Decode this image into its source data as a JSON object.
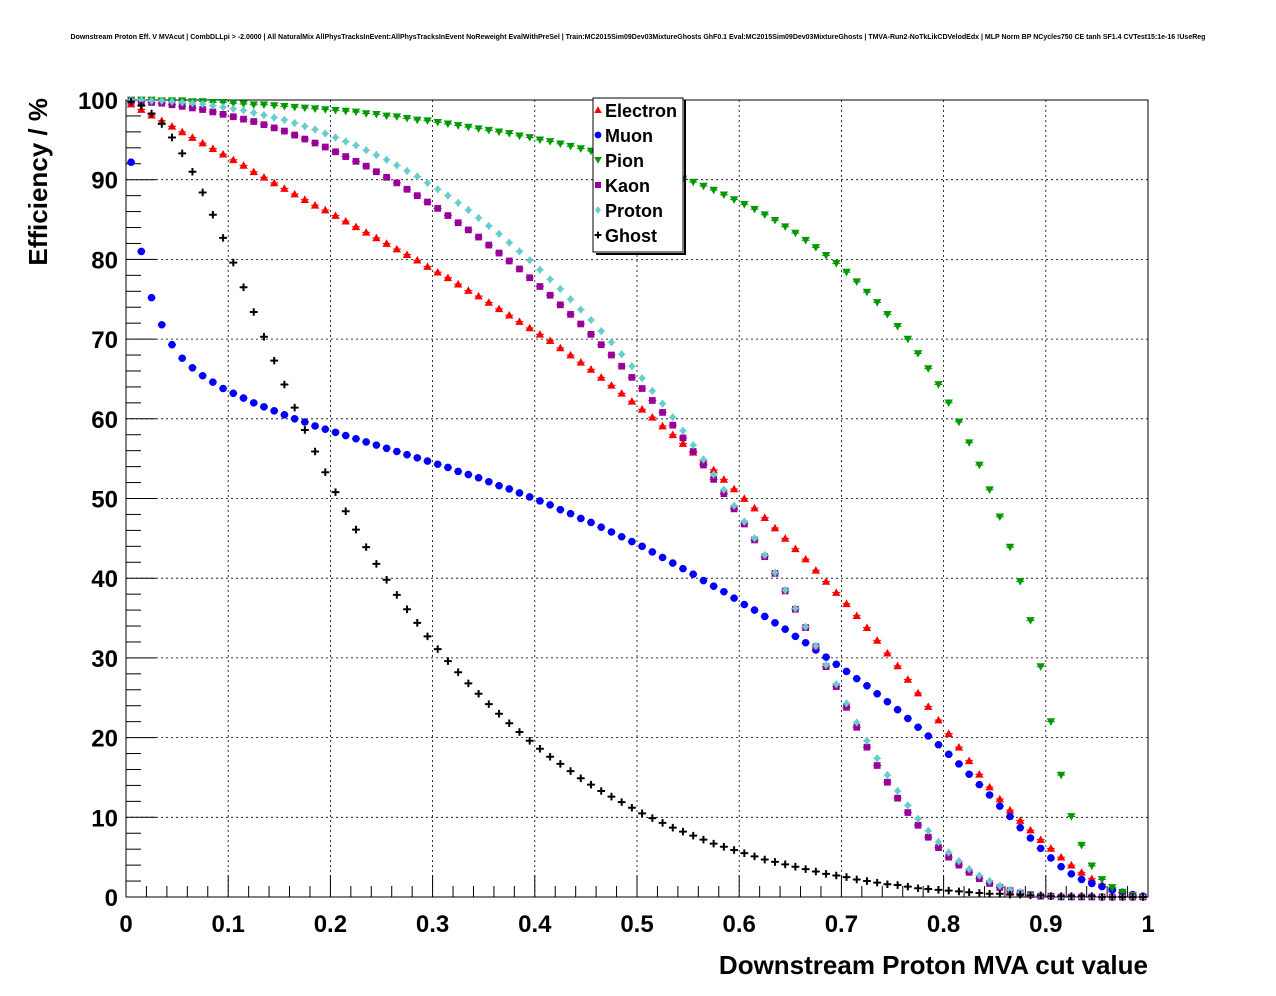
{
  "chart_data": {
    "type": "scatter",
    "title": "Downstream Proton Eff. V MVAcut | CombDLLpi > -2.0000 | All NaturalMix AllPhysTracksInEvent:AllPhysTracksInEvent NoReweight EvalWithPreSel | Train:MC2015Sim09Dev03MixtureGhosts GhF0.1 Eval:MC2015Sim09Dev03MixtureGhosts | TMVA-Run2-NoTkLikCDVelodEdx | MLP Norm BP NCycles750 CE tanh SF1.4 CVTest15:1e-16 !UseReg",
    "xlabel": "Downstream Proton MVA cut value",
    "ylabel": "Efficiency / %",
    "xlim": [
      0,
      1
    ],
    "ylim": [
      0,
      100
    ],
    "grid": true,
    "legend_position": "top-center",
    "x_ticks": [
      "0",
      "0.1",
      "0.2",
      "0.3",
      "0.4",
      "0.5",
      "0.6",
      "0.7",
      "0.8",
      "0.9",
      "1"
    ],
    "y_ticks": [
      "0",
      "10",
      "20",
      "30",
      "40",
      "50",
      "60",
      "70",
      "80",
      "90",
      "100"
    ],
    "x": [
      0.005,
      0.015,
      0.025,
      0.035,
      0.045,
      0.055,
      0.065,
      0.075,
      0.085,
      0.095,
      0.105,
      0.115,
      0.125,
      0.135,
      0.145,
      0.155,
      0.165,
      0.175,
      0.185,
      0.195,
      0.205,
      0.215,
      0.225,
      0.235,
      0.245,
      0.255,
      0.265,
      0.275,
      0.285,
      0.295,
      0.305,
      0.315,
      0.325,
      0.335,
      0.345,
      0.355,
      0.365,
      0.375,
      0.385,
      0.395,
      0.405,
      0.415,
      0.425,
      0.435,
      0.445,
      0.455,
      0.465,
      0.475,
      0.485,
      0.495,
      0.505,
      0.515,
      0.525,
      0.535,
      0.545,
      0.555,
      0.565,
      0.575,
      0.585,
      0.595,
      0.605,
      0.615,
      0.625,
      0.635,
      0.645,
      0.655,
      0.665,
      0.675,
      0.685,
      0.695,
      0.705,
      0.715,
      0.725,
      0.735,
      0.745,
      0.755,
      0.765,
      0.775,
      0.785,
      0.795,
      0.805,
      0.815,
      0.825,
      0.835,
      0.845,
      0.855,
      0.865,
      0.875,
      0.885,
      0.895,
      0.905,
      0.915,
      0.925,
      0.935,
      0.945,
      0.955,
      0.965,
      0.975,
      0.985,
      0.995
    ],
    "series": [
      {
        "name": "Electron",
        "color": "#ff0000",
        "marker": "triangle-up",
        "values": [
          99.5,
          98.8,
          98.1,
          97.4,
          96.7,
          96.0,
          95.3,
          94.6,
          93.9,
          93.2,
          92.5,
          91.8,
          91.0,
          90.3,
          89.6,
          88.9,
          88.2,
          87.5,
          86.8,
          86.2,
          85.5,
          84.8,
          84.1,
          83.4,
          82.7,
          82.0,
          81.3,
          80.6,
          79.9,
          79.1,
          78.4,
          77.7,
          76.9,
          76.1,
          75.4,
          74.6,
          73.8,
          73.0,
          72.2,
          71.4,
          70.6,
          69.8,
          68.9,
          68.0,
          67.1,
          66.2,
          65.2,
          64.2,
          63.2,
          62.2,
          61.2,
          60.2,
          59.1,
          58.0,
          56.9,
          55.8,
          54.7,
          53.6,
          52.4,
          51.2,
          50.0,
          48.8,
          47.6,
          46.3,
          45.0,
          43.7,
          42.4,
          41.0,
          39.6,
          38.2,
          36.8,
          35.3,
          33.8,
          32.2,
          30.6,
          29.0,
          27.3,
          25.6,
          23.9,
          22.2,
          20.5,
          18.8,
          17.1,
          15.4,
          13.8,
          12.3,
          10.9,
          9.6,
          8.4,
          7.2,
          6.1,
          5.0,
          4.0,
          3.1,
          2.3,
          1.6,
          1.0,
          0.5,
          0.2,
          0.1
        ]
      },
      {
        "name": "Muon",
        "color": "#0000ff",
        "marker": "circle",
        "values": [
          92.2,
          81.0,
          75.2,
          71.8,
          69.3,
          67.6,
          66.4,
          65.4,
          64.6,
          63.8,
          63.2,
          62.6,
          62.0,
          61.5,
          61.0,
          60.5,
          60.0,
          59.6,
          59.1,
          58.7,
          58.3,
          57.9,
          57.5,
          57.1,
          56.7,
          56.3,
          55.9,
          55.5,
          55.1,
          54.7,
          54.3,
          53.9,
          53.4,
          53.0,
          52.6,
          52.1,
          51.6,
          51.2,
          50.7,
          50.2,
          49.7,
          49.2,
          48.6,
          48.1,
          47.5,
          47.0,
          46.4,
          45.8,
          45.2,
          44.6,
          44.0,
          43.3,
          42.6,
          41.9,
          41.2,
          40.5,
          39.7,
          39.0,
          38.3,
          37.5,
          36.7,
          36.0,
          35.2,
          34.4,
          33.6,
          32.7,
          31.9,
          31.0,
          30.1,
          29.2,
          28.3,
          27.4,
          26.5,
          25.5,
          24.5,
          23.5,
          22.4,
          21.3,
          20.2,
          19.1,
          17.9,
          16.7,
          15.4,
          14.1,
          12.8,
          11.4,
          10.1,
          8.7,
          7.4,
          6.1,
          4.9,
          3.8,
          2.9,
          2.2,
          1.7,
          1.3,
          0.9,
          0.6,
          0.3,
          0.1
        ]
      },
      {
        "name": "Pion",
        "color": "#009900",
        "marker": "triangle-down",
        "values": [
          100.0,
          100.0,
          100.0,
          99.9,
          99.9,
          99.9,
          99.8,
          99.8,
          99.7,
          99.7,
          99.6,
          99.5,
          99.4,
          99.4,
          99.3,
          99.2,
          99.1,
          99.0,
          98.9,
          98.8,
          98.7,
          98.6,
          98.5,
          98.3,
          98.2,
          98.0,
          97.9,
          97.7,
          97.5,
          97.4,
          97.2,
          97.0,
          96.8,
          96.6,
          96.4,
          96.2,
          96.0,
          95.8,
          95.5,
          95.3,
          95.0,
          94.8,
          94.5,
          94.2,
          93.9,
          93.6,
          93.3,
          92.9,
          92.6,
          92.2,
          91.8,
          91.4,
          91.0,
          90.6,
          90.1,
          89.7,
          89.2,
          88.7,
          88.1,
          87.5,
          86.9,
          86.3,
          85.6,
          84.9,
          84.1,
          83.3,
          82.4,
          81.5,
          80.5,
          79.5,
          78.4,
          77.2,
          75.9,
          74.6,
          73.1,
          71.6,
          70.0,
          68.2,
          66.3,
          64.3,
          62.0,
          59.6,
          57.0,
          54.2,
          51.1,
          47.7,
          43.9,
          39.6,
          34.7,
          28.9,
          22.0,
          15.3,
          10.1,
          6.5,
          3.9,
          2.2,
          1.2,
          0.6,
          0.2,
          0.0
        ]
      },
      {
        "name": "Kaon",
        "color": "#990099",
        "marker": "square",
        "values": [
          99.9,
          99.8,
          99.7,
          99.6,
          99.4,
          99.2,
          99.0,
          98.8,
          98.5,
          98.2,
          97.9,
          97.6,
          97.3,
          96.9,
          96.5,
          96.1,
          95.6,
          95.1,
          94.6,
          94.1,
          93.5,
          92.9,
          92.3,
          91.7,
          91.0,
          90.3,
          89.6,
          88.8,
          88.0,
          87.2,
          86.4,
          85.5,
          84.6,
          83.7,
          82.8,
          81.8,
          80.8,
          79.8,
          78.8,
          77.7,
          76.6,
          75.5,
          74.3,
          73.1,
          71.9,
          70.6,
          69.3,
          68.0,
          66.6,
          65.2,
          63.8,
          62.3,
          60.8,
          59.2,
          57.6,
          55.9,
          54.2,
          52.4,
          50.6,
          48.7,
          46.8,
          44.8,
          42.7,
          40.6,
          38.4,
          36.1,
          33.8,
          31.4,
          28.9,
          26.4,
          23.8,
          21.3,
          18.8,
          16.5,
          14.4,
          12.4,
          10.6,
          9.0,
          7.5,
          6.2,
          5.0,
          4.0,
          3.1,
          2.3,
          1.7,
          1.2,
          0.8,
          0.5,
          0.3,
          0.1,
          0.1,
          0.0,
          0.0,
          0.0,
          0.0,
          0.0,
          0.0,
          0.0,
          0.0,
          0.0
        ]
      },
      {
        "name": "Proton",
        "color": "#66cccc",
        "marker": "diamond",
        "values": [
          100.0,
          100.0,
          99.9,
          99.9,
          99.8,
          99.7,
          99.6,
          99.5,
          99.3,
          99.1,
          98.9,
          98.7,
          98.4,
          98.1,
          97.8,
          97.5,
          97.1,
          96.7,
          96.3,
          95.8,
          95.3,
          94.8,
          94.3,
          93.7,
          93.1,
          92.5,
          91.8,
          91.1,
          90.4,
          89.6,
          88.8,
          88.0,
          87.1,
          86.2,
          85.2,
          84.2,
          83.2,
          82.1,
          81.0,
          79.9,
          78.7,
          77.5,
          76.3,
          75.0,
          73.7,
          72.4,
          71.0,
          69.6,
          68.1,
          66.6,
          65.1,
          63.5,
          61.9,
          60.2,
          58.5,
          56.7,
          54.9,
          53.0,
          51.1,
          49.1,
          47.1,
          45.0,
          42.9,
          40.7,
          38.5,
          36.2,
          33.9,
          31.5,
          29.1,
          26.7,
          24.3,
          21.9,
          19.6,
          17.4,
          15.3,
          13.3,
          11.5,
          9.8,
          8.3,
          6.9,
          5.6,
          4.5,
          3.5,
          2.7,
          2.0,
          1.4,
          0.9,
          0.6,
          0.3,
          0.2,
          0.1,
          0.0,
          0.0,
          0.0,
          0.0,
          0.0,
          0.0,
          0.0,
          0.0,
          0.0
        ]
      },
      {
        "name": "Ghost",
        "color": "#000000",
        "marker": "cross",
        "values": [
          99.8,
          99.3,
          98.3,
          97.0,
          95.3,
          93.3,
          91.0,
          88.4,
          85.6,
          82.7,
          79.6,
          76.5,
          73.4,
          70.3,
          67.3,
          64.3,
          61.4,
          58.6,
          55.9,
          53.3,
          50.8,
          48.4,
          46.1,
          43.9,
          41.8,
          39.8,
          37.9,
          36.1,
          34.4,
          32.7,
          31.1,
          29.6,
          28.2,
          26.8,
          25.5,
          24.2,
          23.0,
          21.8,
          20.7,
          19.6,
          18.6,
          17.6,
          16.7,
          15.8,
          14.9,
          14.1,
          13.3,
          12.6,
          11.9,
          11.2,
          10.5,
          9.9,
          9.3,
          8.7,
          8.2,
          7.7,
          7.2,
          6.7,
          6.3,
          5.9,
          5.5,
          5.1,
          4.7,
          4.4,
          4.1,
          3.8,
          3.5,
          3.2,
          2.9,
          2.7,
          2.5,
          2.2,
          2.0,
          1.8,
          1.6,
          1.5,
          1.3,
          1.1,
          1.0,
          0.9,
          0.8,
          0.7,
          0.6,
          0.5,
          0.4,
          0.4,
          0.3,
          0.3,
          0.2,
          0.2,
          0.1,
          0.1,
          0.1,
          0.1,
          0.1,
          0.0,
          0.0,
          0.0,
          0.0,
          0.0
        ]
      }
    ]
  }
}
